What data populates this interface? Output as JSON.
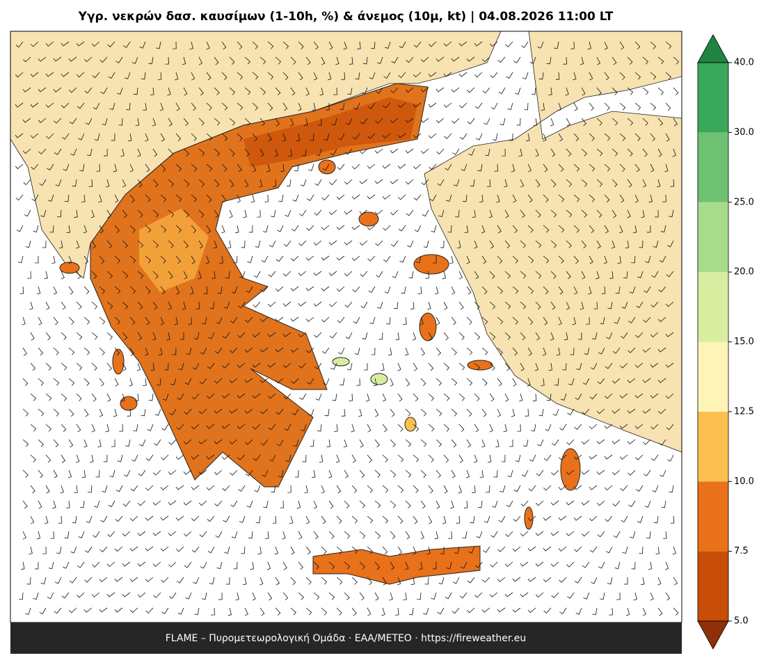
{
  "title": "Υγρ. νεκρών δασ. καυσίμων (1-10h, %) & άνεμος (10μ, kt)  |  04.08.2026 11:00 LT",
  "footer": "FLAME – Πυρομετεωρολογική Ομάδα · ΕΑΑ/METEO · https://fireweather.eu",
  "colorbar": {
    "levels": [
      {
        "value": 5,
        "label": "5.0"
      },
      {
        "value": 7.5,
        "label": "7.5"
      },
      {
        "value": 10,
        "label": "10.0"
      },
      {
        "value": 12.5,
        "label": "12.5"
      },
      {
        "value": 15,
        "label": "15.0"
      },
      {
        "value": 20,
        "label": "20.0"
      },
      {
        "value": 25,
        "label": "25.0"
      },
      {
        "value": 30,
        "label": "30.0"
      },
      {
        "value": 40,
        "label": "40.0"
      }
    ],
    "colors": [
      "#c84d06",
      "#e8711a",
      "#fdbf4f",
      "#fff4b8",
      "#d9eda0",
      "#a8dc8a",
      "#6fc172",
      "#3aa85a"
    ],
    "under_color": "#8f3008",
    "over_color": "#1f8440"
  }
}
